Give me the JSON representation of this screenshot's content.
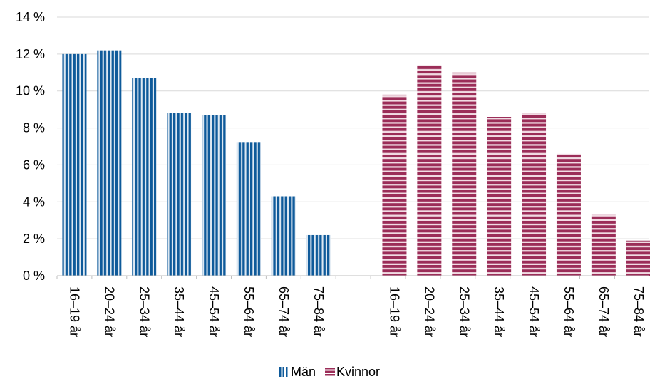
{
  "colors": {
    "man": "#0e5a9a",
    "kvinna": "#9b2d58",
    "grid": "#d9d9d9",
    "axis": "#bfbfbf"
  },
  "legend": {
    "man_label": "Män",
    "kvinna_label": "Kvinnor"
  },
  "chart_data": {
    "type": "bar",
    "title": "",
    "xlabel": "",
    "ylabel": "",
    "ylim": [
      0,
      14
    ],
    "y_ticks": [
      "0 %",
      "2 %",
      "4 %",
      "6 %",
      "8 %",
      "10 %",
      "12 %",
      "14 %"
    ],
    "grid": true,
    "legend_position": "bottom",
    "groups": [
      {
        "series": "Män",
        "categories": [
          "16–19 år",
          "20–24 år",
          "25–34 år",
          "35–44 år",
          "45–54 år",
          "55–64 år",
          "65–74 år",
          "75–84 år"
        ],
        "values": [
          12.0,
          12.2,
          10.7,
          8.8,
          8.7,
          7.2,
          4.3,
          2.2
        ]
      },
      {
        "series": "Kvinnor",
        "categories": [
          "16–19 år",
          "20–24 år",
          "25–34 år",
          "35–44 år",
          "45–54 år",
          "55–64 år",
          "65–74 år",
          "75–84 år"
        ],
        "values": [
          9.8,
          11.4,
          11.0,
          8.6,
          8.8,
          6.6,
          3.3,
          1.9
        ]
      }
    ]
  }
}
